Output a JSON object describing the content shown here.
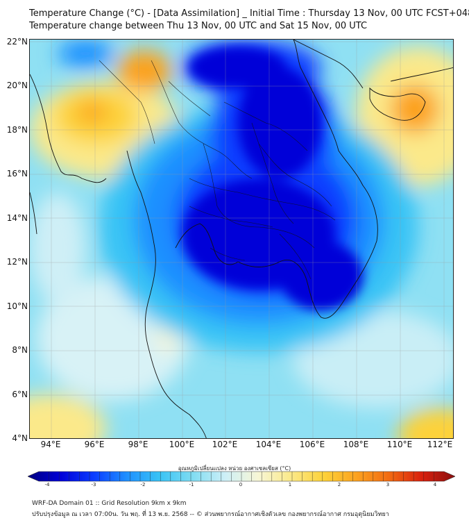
{
  "header": {
    "title_line1": "Temperature Change (°C) - [Data Assimilation] _ Initial Time : Thursday 13 Nov, 00 UTC FCST+048",
    "title_line2": "Temperature change between Thu 13 Nov, 00 UTC and Sat 15 Nov, 00 UTC"
  },
  "axes": {
    "lat_labels": [
      "22°N",
      "20°N",
      "18°N",
      "16°N",
      "14°N",
      "12°N",
      "10°N",
      "8°N",
      "6°N",
      "4°N"
    ],
    "lon_labels": [
      "94°E",
      "96°E",
      "98°E",
      "100°E",
      "102°E",
      "104°E",
      "106°E",
      "108°E",
      "110°E",
      "112°E"
    ],
    "lat_range": [
      4,
      22.2
    ],
    "lon_range": [
      93,
      112.5
    ]
  },
  "colorbar": {
    "title": "อุณหภูมิเปลี่ยนแปลง หน่วย องศาเซลเซียส (°C)",
    "min": -4,
    "max": 4,
    "tick_labels": [
      "-4",
      "-3",
      "-2",
      "-1",
      "0",
      "1",
      "2",
      "3",
      "4"
    ],
    "colors": [
      "#00007f",
      "#0000d8",
      "#0a3cff",
      "#1f8fff",
      "#39c3f5",
      "#7fdcf2",
      "#cdeff7",
      "#f7f6d6",
      "#fbe98a",
      "#fdd23a",
      "#fca21f",
      "#f26a12",
      "#d8200e",
      "#8a0f0f"
    ]
  },
  "footer": {
    "line1": "WRF-DA Domain 01 :: Grid Resolution 9km x 9km",
    "line2": "ปรับปรุงข้อมูล ณ เวลา 07:00น. วัน พฤ. ที่ 13 พ.ย. 2568 -- © ส่วนพยากรณ์อากาศเชิงตัวเลข กองพยากรณ์อากาศ กรมอุตุนิยมวิทยา"
  }
}
